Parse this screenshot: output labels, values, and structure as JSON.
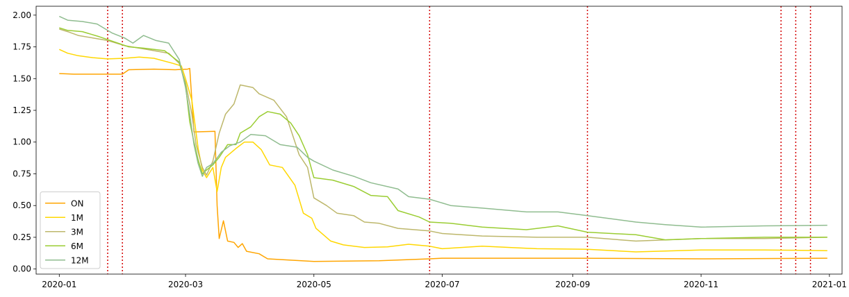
{
  "chart_data": {
    "type": "line",
    "title": "",
    "xlabel": "",
    "ylabel": "",
    "x_axis": {
      "type": "date",
      "range": [
        "2019-12-21",
        "2021-01-07"
      ],
      "ticks": [
        "2020-01-01",
        "2020-03-01",
        "2020-05-01",
        "2020-07-01",
        "2020-09-01",
        "2020-11-01",
        "2021-01-01"
      ],
      "tick_labels": [
        "2020-01",
        "2020-03",
        "2020-05",
        "2020-07",
        "2020-09",
        "2020-11",
        "2021-01"
      ]
    },
    "y_axis": {
      "range": [
        -0.04,
        2.07
      ],
      "ticks": [
        0.0,
        0.25,
        0.5,
        0.75,
        1.0,
        1.25,
        1.5,
        1.75,
        2.0
      ],
      "tick_labels": [
        "0.00",
        "0.25",
        "0.50",
        "0.75",
        "1.00",
        "1.25",
        "1.50",
        "1.75",
        "2.00"
      ]
    },
    "grid": false,
    "legend_position": "lower-left",
    "vertical_markers": {
      "color": "#d40000",
      "style": "dotted",
      "dates": [
        "2020-01-24",
        "2020-01-31",
        "2020-06-25",
        "2020-09-08",
        "2020-12-09",
        "2020-12-16",
        "2020-12-23"
      ]
    },
    "series": [
      {
        "name": "ON",
        "color": "#ffa500",
        "points": [
          [
            "2020-01-01",
            1.54
          ],
          [
            "2020-01-08",
            1.535
          ],
          [
            "2020-01-15",
            1.535
          ],
          [
            "2020-01-22",
            1.535
          ],
          [
            "2020-01-31",
            1.535
          ],
          [
            "2020-02-03",
            1.57
          ],
          [
            "2020-02-15",
            1.575
          ],
          [
            "2020-02-25",
            1.57
          ],
          [
            "2020-03-02",
            1.575
          ],
          [
            "2020-03-03",
            1.58
          ],
          [
            "2020-03-05",
            1.08
          ],
          [
            "2020-03-15",
            1.085
          ],
          [
            "2020-03-16",
            0.5
          ],
          [
            "2020-03-17",
            0.24
          ],
          [
            "2020-03-19",
            0.38
          ],
          [
            "2020-03-21",
            0.22
          ],
          [
            "2020-03-24",
            0.21
          ],
          [
            "2020-03-26",
            0.17
          ],
          [
            "2020-03-28",
            0.2
          ],
          [
            "2020-03-30",
            0.14
          ],
          [
            "2020-04-05",
            0.12
          ],
          [
            "2020-04-09",
            0.08
          ],
          [
            "2020-04-20",
            0.07
          ],
          [
            "2020-05-01",
            0.06
          ],
          [
            "2020-06-01",
            0.065
          ],
          [
            "2020-06-25",
            0.08
          ],
          [
            "2020-07-01",
            0.085
          ],
          [
            "2020-09-01",
            0.085
          ],
          [
            "2020-11-01",
            0.08
          ],
          [
            "2020-12-31",
            0.085
          ]
        ]
      },
      {
        "name": "1M",
        "color": "#ffd700",
        "points": [
          [
            "2020-01-01",
            1.73
          ],
          [
            "2020-01-05",
            1.7
          ],
          [
            "2020-01-10",
            1.68
          ],
          [
            "2020-01-17",
            1.665
          ],
          [
            "2020-01-24",
            1.655
          ],
          [
            "2020-02-01",
            1.66
          ],
          [
            "2020-02-08",
            1.67
          ],
          [
            "2020-02-15",
            1.66
          ],
          [
            "2020-02-24",
            1.62
          ],
          [
            "2020-02-28",
            1.6
          ],
          [
            "2020-03-01",
            1.5
          ],
          [
            "2020-03-04",
            1.33
          ],
          [
            "2020-03-07",
            0.95
          ],
          [
            "2020-03-09",
            0.78
          ],
          [
            "2020-03-11",
            0.72
          ],
          [
            "2020-03-14",
            0.8
          ],
          [
            "2020-03-16",
            0.61
          ],
          [
            "2020-03-18",
            0.8
          ],
          [
            "2020-03-20",
            0.88
          ],
          [
            "2020-03-25",
            0.95
          ],
          [
            "2020-03-29",
            1.0
          ],
          [
            "2020-04-02",
            1.0
          ],
          [
            "2020-04-06",
            0.94
          ],
          [
            "2020-04-10",
            0.82
          ],
          [
            "2020-04-16",
            0.8
          ],
          [
            "2020-04-22",
            0.66
          ],
          [
            "2020-04-26",
            0.44
          ],
          [
            "2020-04-30",
            0.4
          ],
          [
            "2020-05-02",
            0.32
          ],
          [
            "2020-05-09",
            0.22
          ],
          [
            "2020-05-15",
            0.19
          ],
          [
            "2020-05-25",
            0.17
          ],
          [
            "2020-06-05",
            0.175
          ],
          [
            "2020-06-15",
            0.195
          ],
          [
            "2020-06-25",
            0.18
          ],
          [
            "2020-07-01",
            0.16
          ],
          [
            "2020-07-20",
            0.18
          ],
          [
            "2020-08-15",
            0.16
          ],
          [
            "2020-09-08",
            0.155
          ],
          [
            "2020-10-01",
            0.135
          ],
          [
            "2020-11-01",
            0.15
          ],
          [
            "2020-12-01",
            0.15
          ],
          [
            "2020-12-31",
            0.145
          ]
        ]
      },
      {
        "name": "3M",
        "color": "#bdb76b",
        "points": [
          [
            "2020-01-01",
            1.89
          ],
          [
            "2020-01-05",
            1.87
          ],
          [
            "2020-01-10",
            1.84
          ],
          [
            "2020-01-17",
            1.82
          ],
          [
            "2020-01-24",
            1.8
          ],
          [
            "2020-02-01",
            1.76
          ],
          [
            "2020-02-08",
            1.74
          ],
          [
            "2020-02-15",
            1.72
          ],
          [
            "2020-02-22",
            1.7
          ],
          [
            "2020-02-27",
            1.62
          ],
          [
            "2020-03-01",
            1.47
          ],
          [
            "2020-03-04",
            1.22
          ],
          [
            "2020-03-06",
            0.98
          ],
          [
            "2020-03-09",
            0.8
          ],
          [
            "2020-03-11",
            0.74
          ],
          [
            "2020-03-14",
            0.85
          ],
          [
            "2020-03-17",
            1.07
          ],
          [
            "2020-03-20",
            1.22
          ],
          [
            "2020-03-24",
            1.3
          ],
          [
            "2020-03-27",
            1.45
          ],
          [
            "2020-04-02",
            1.43
          ],
          [
            "2020-04-05",
            1.38
          ],
          [
            "2020-04-12",
            1.33
          ],
          [
            "2020-04-18",
            1.2
          ],
          [
            "2020-04-24",
            0.9
          ],
          [
            "2020-04-28",
            0.8
          ],
          [
            "2020-05-01",
            0.56
          ],
          [
            "2020-05-07",
            0.5
          ],
          [
            "2020-05-12",
            0.44
          ],
          [
            "2020-05-20",
            0.42
          ],
          [
            "2020-05-25",
            0.37
          ],
          [
            "2020-06-01",
            0.36
          ],
          [
            "2020-06-10",
            0.32
          ],
          [
            "2020-06-25",
            0.3
          ],
          [
            "2020-07-01",
            0.28
          ],
          [
            "2020-07-20",
            0.26
          ],
          [
            "2020-08-15",
            0.25
          ],
          [
            "2020-09-08",
            0.25
          ],
          [
            "2020-10-01",
            0.22
          ],
          [
            "2020-11-01",
            0.24
          ],
          [
            "2020-12-01",
            0.24
          ],
          [
            "2020-12-31",
            0.25
          ]
        ]
      },
      {
        "name": "6M",
        "color": "#9acd32",
        "points": [
          [
            "2020-01-01",
            1.9
          ],
          [
            "2020-01-05",
            1.88
          ],
          [
            "2020-01-12",
            1.87
          ],
          [
            "2020-01-20",
            1.83
          ],
          [
            "2020-01-27",
            1.79
          ],
          [
            "2020-02-03",
            1.75
          ],
          [
            "2020-02-10",
            1.74
          ],
          [
            "2020-02-20",
            1.72
          ],
          [
            "2020-02-27",
            1.63
          ],
          [
            "2020-03-01",
            1.45
          ],
          [
            "2020-03-03",
            1.16
          ],
          [
            "2020-03-05",
            1.0
          ],
          [
            "2020-03-07",
            0.86
          ],
          [
            "2020-03-09",
            0.75
          ],
          [
            "2020-03-11",
            0.78
          ],
          [
            "2020-03-14",
            0.82
          ],
          [
            "2020-03-17",
            0.88
          ],
          [
            "2020-03-21",
            0.98
          ],
          [
            "2020-03-25",
            0.98
          ],
          [
            "2020-03-27",
            1.07
          ],
          [
            "2020-04-01",
            1.12
          ],
          [
            "2020-04-05",
            1.2
          ],
          [
            "2020-04-09",
            1.24
          ],
          [
            "2020-04-15",
            1.22
          ],
          [
            "2020-04-20",
            1.15
          ],
          [
            "2020-04-24",
            1.05
          ],
          [
            "2020-04-28",
            0.9
          ],
          [
            "2020-05-01",
            0.72
          ],
          [
            "2020-05-10",
            0.7
          ],
          [
            "2020-05-20",
            0.65
          ],
          [
            "2020-05-28",
            0.58
          ],
          [
            "2020-06-05",
            0.57
          ],
          [
            "2020-06-10",
            0.46
          ],
          [
            "2020-06-20",
            0.41
          ],
          [
            "2020-06-25",
            0.37
          ],
          [
            "2020-07-05",
            0.36
          ],
          [
            "2020-07-20",
            0.33
          ],
          [
            "2020-08-10",
            0.31
          ],
          [
            "2020-08-25",
            0.34
          ],
          [
            "2020-09-08",
            0.29
          ],
          [
            "2020-10-01",
            0.27
          ],
          [
            "2020-10-15",
            0.23
          ],
          [
            "2020-11-01",
            0.24
          ],
          [
            "2020-12-01",
            0.25
          ],
          [
            "2020-12-31",
            0.25
          ]
        ]
      },
      {
        "name": "12M",
        "color": "#8fbc8f",
        "points": [
          [
            "2020-01-01",
            1.99
          ],
          [
            "2020-01-05",
            1.96
          ],
          [
            "2020-01-12",
            1.95
          ],
          [
            "2020-01-19",
            1.93
          ],
          [
            "2020-01-26",
            1.86
          ],
          [
            "2020-02-01",
            1.82
          ],
          [
            "2020-02-05",
            1.78
          ],
          [
            "2020-02-10",
            1.84
          ],
          [
            "2020-02-16",
            1.8
          ],
          [
            "2020-02-22",
            1.78
          ],
          [
            "2020-02-27",
            1.65
          ],
          [
            "2020-03-01",
            1.43
          ],
          [
            "2020-03-03",
            1.22
          ],
          [
            "2020-03-05",
            0.98
          ],
          [
            "2020-03-07",
            0.83
          ],
          [
            "2020-03-09",
            0.73
          ],
          [
            "2020-03-11",
            0.8
          ],
          [
            "2020-03-14",
            0.83
          ],
          [
            "2020-03-18",
            0.92
          ],
          [
            "2020-03-22",
            0.97
          ],
          [
            "2020-03-27",
            1.0
          ],
          [
            "2020-04-01",
            1.06
          ],
          [
            "2020-04-08",
            1.05
          ],
          [
            "2020-04-15",
            0.98
          ],
          [
            "2020-04-23",
            0.96
          ],
          [
            "2020-04-28",
            0.88
          ],
          [
            "2020-05-01",
            0.85
          ],
          [
            "2020-05-10",
            0.78
          ],
          [
            "2020-05-20",
            0.73
          ],
          [
            "2020-05-28",
            0.68
          ],
          [
            "2020-06-10",
            0.63
          ],
          [
            "2020-06-15",
            0.57
          ],
          [
            "2020-06-25",
            0.55
          ],
          [
            "2020-07-05",
            0.5
          ],
          [
            "2020-07-20",
            0.48
          ],
          [
            "2020-08-10",
            0.45
          ],
          [
            "2020-08-25",
            0.45
          ],
          [
            "2020-09-08",
            0.42
          ],
          [
            "2020-10-01",
            0.37
          ],
          [
            "2020-10-15",
            0.35
          ],
          [
            "2020-11-01",
            0.33
          ],
          [
            "2020-12-01",
            0.34
          ],
          [
            "2020-12-31",
            0.345
          ]
        ]
      }
    ]
  }
}
